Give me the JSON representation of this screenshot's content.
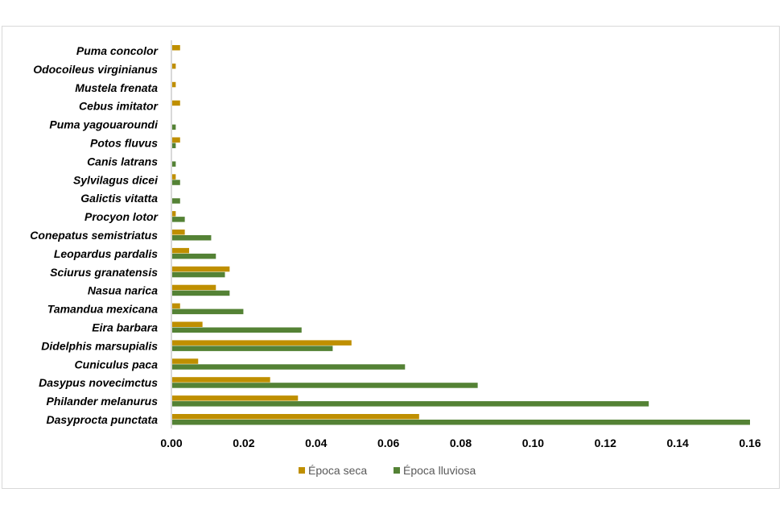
{
  "chart_data": {
    "type": "bar",
    "orientation": "horizontal",
    "categories": [
      "Puma concolor",
      "Odocoileus virginianus",
      "Mustela frenata",
      "Cebus imitator",
      "Puma yagouaroundi",
      "Potos fluvus",
      "Canis latrans",
      "Sylvilagus dicei",
      "Galictis vitatta",
      "Procyon lotor",
      "Conepatus semistriatus",
      "Leopardus pardalis",
      "Sciurus granatensis",
      "Nasua narica",
      "Tamandua mexicana",
      "Eira barbara",
      "Didelphis marsupialis",
      "Cuniculus paca",
      "Dasypus novecimctus",
      "Philander melanurus",
      "Dasyprocta punctata"
    ],
    "series": [
      {
        "name": "Época seca",
        "color": "#BF8F00",
        "values": [
          0.0024,
          0.0012,
          0.0012,
          0.0024,
          0,
          0.0024,
          0,
          0.0012,
          0,
          0.0012,
          0.0037,
          0.0049,
          0.0161,
          0.0123,
          0.0024,
          0.0086,
          0.0498,
          0.0074,
          0.0273,
          0.035,
          0.0685
        ]
      },
      {
        "name": "Época lluviosa",
        "color": "#548235",
        "values": [
          0,
          0,
          0,
          0,
          0.0012,
          0.0012,
          0.0012,
          0.0024,
          0.0024,
          0.0037,
          0.011,
          0.0123,
          0.0148,
          0.0161,
          0.0199,
          0.036,
          0.0446,
          0.0646,
          0.0847,
          0.132,
          0.16
        ]
      }
    ],
    "xlim": [
      0,
      0.16
    ],
    "xticks": [
      "0.00",
      "0.02",
      "0.04",
      "0.06",
      "0.08",
      "0.10",
      "0.12",
      "0.14",
      "0.16"
    ],
    "grid": false,
    "legend": "bottom"
  }
}
